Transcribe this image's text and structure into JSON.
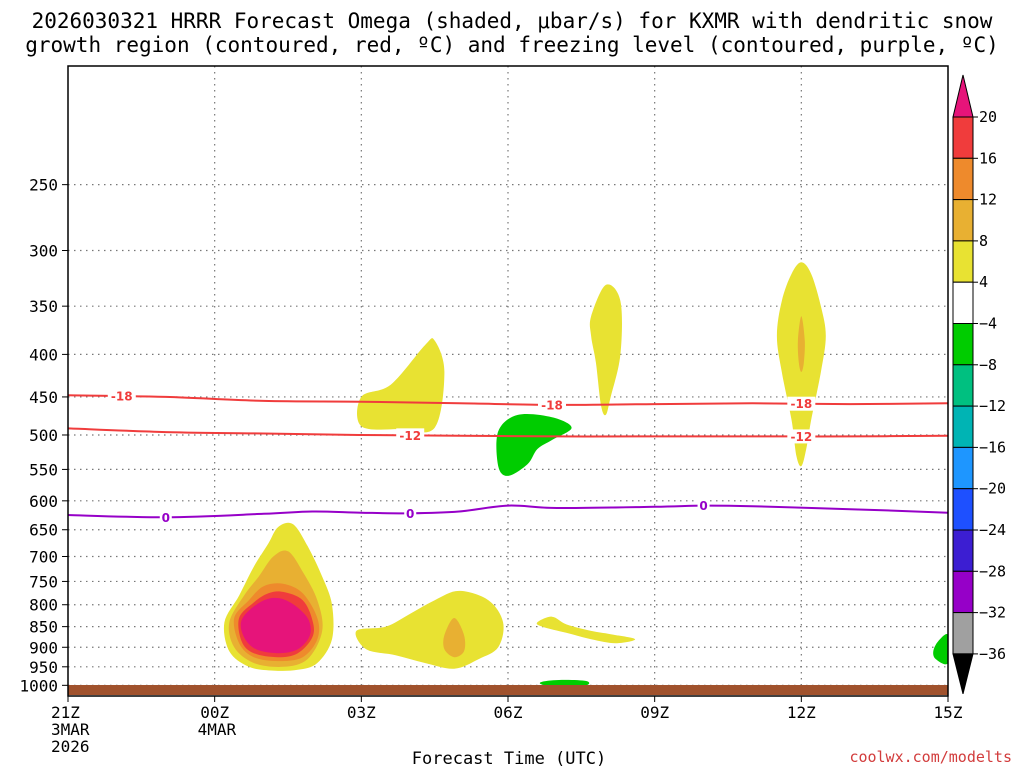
{
  "chart_data": {
    "type": "contour-cross-section",
    "title_line1": "2026030321 HRRR Forecast Omega (shaded, μbar/s) for KXMR with dendritic snow",
    "title_line2": "growth region (contoured, red, ºC) and freezing level (contoured, purple, ºC)",
    "xlabel": "Forecast Time (UTC)",
    "credit": "coolwx.com/modelts",
    "xlim": [
      0,
      18
    ],
    "ylim": [
      1030,
      180
    ],
    "x_ticks": [
      {
        "value": 0,
        "lines": [
          "21Z",
          "3MAR",
          "2026"
        ]
      },
      {
        "value": 3,
        "lines": [
          "00Z",
          "4MAR"
        ]
      },
      {
        "value": 6,
        "lines": [
          "03Z"
        ]
      },
      {
        "value": 9,
        "lines": [
          "06Z"
        ]
      },
      {
        "value": 12,
        "lines": [
          "09Z"
        ]
      },
      {
        "value": 15,
        "lines": [
          "12Z"
        ]
      },
      {
        "value": 18,
        "lines": [
          "15Z"
        ]
      }
    ],
    "y_ticks": [
      250,
      300,
      350,
      400,
      450,
      500,
      550,
      600,
      650,
      700,
      750,
      800,
      850,
      900,
      950,
      1000
    ],
    "colorbar": {
      "labels": [
        "20",
        "16",
        "12",
        "8",
        "4",
        "−4",
        "−8",
        "−12",
        "−16",
        "−20",
        "−24",
        "−28",
        "−32",
        "−36"
      ],
      "colors": [
        "#f03c3c",
        "#ee8a2c",
        "#e8b032",
        "#e8e232",
        "#ffffff",
        "#00cc00",
        "#00c080",
        "#00b4b4",
        "#1e96ff",
        "#1e50ff",
        "#3c1ed2",
        "#9600c8",
        "#a0a0a0"
      ],
      "top_arrow_color": "#e6147a",
      "bottom_arrow_color": "#000000"
    },
    "contours": [
      {
        "name": "dgz-minus-18",
        "label": "-18",
        "color": "#f03c3c",
        "points": [
          [
            0,
            448
          ],
          [
            2,
            450
          ],
          [
            4,
            455
          ],
          [
            6,
            456
          ],
          [
            8,
            458
          ],
          [
            10,
            460
          ],
          [
            12,
            459
          ],
          [
            14,
            458
          ],
          [
            16,
            459
          ],
          [
            18,
            458
          ]
        ],
        "label_x": [
          1.1,
          9.9,
          15.0
        ]
      },
      {
        "name": "dgz-minus-12",
        "label": "-12",
        "color": "#f03c3c",
        "points": [
          [
            0,
            491
          ],
          [
            2,
            496
          ],
          [
            4,
            498
          ],
          [
            6,
            500
          ],
          [
            8,
            501
          ],
          [
            10,
            502
          ],
          [
            12,
            502
          ],
          [
            14,
            502
          ],
          [
            16,
            502
          ],
          [
            18,
            501
          ]
        ],
        "label_x": [
          7.0,
          15.0
        ]
      },
      {
        "name": "freezing-level-0",
        "label": "0",
        "color": "#9600c8",
        "points": [
          [
            0,
            624
          ],
          [
            2,
            628
          ],
          [
            4,
            622
          ],
          [
            5,
            618
          ],
          [
            6,
            620
          ],
          [
            7,
            621
          ],
          [
            8,
            618
          ],
          [
            9,
            608
          ],
          [
            10,
            612
          ],
          [
            12,
            610
          ],
          [
            13,
            608
          ],
          [
            14,
            609
          ],
          [
            16,
            614
          ],
          [
            18,
            620
          ]
        ],
        "label_x": [
          2.0,
          7.0,
          13.0
        ]
      }
    ],
    "shaded_regions": [
      {
        "name": "omega-4-8-cell-00z",
        "value_range": [
          4,
          8
        ],
        "color": "#e8e232",
        "points": [
          [
            3.2,
            840
          ],
          [
            3.5,
            780
          ],
          [
            3.8,
            720
          ],
          [
            4.1,
            675
          ],
          [
            4.3,
            645
          ],
          [
            4.6,
            640
          ],
          [
            4.9,
            680
          ],
          [
            5.2,
            740
          ],
          [
            5.4,
            800
          ],
          [
            5.4,
            880
          ],
          [
            5.1,
            940
          ],
          [
            4.7,
            958
          ],
          [
            4.2,
            960
          ],
          [
            3.7,
            950
          ],
          [
            3.3,
            910
          ]
        ]
      },
      {
        "name": "omega-8-12-cell-00z",
        "value_range": [
          8,
          12
        ],
        "color": "#e8b032",
        "points": [
          [
            3.3,
            840
          ],
          [
            3.6,
            780
          ],
          [
            3.9,
            740
          ],
          [
            4.2,
            700
          ],
          [
            4.5,
            690
          ],
          [
            4.8,
            730
          ],
          [
            5.1,
            790
          ],
          [
            5.2,
            860
          ],
          [
            4.9,
            930
          ],
          [
            4.4,
            950
          ],
          [
            3.8,
            940
          ],
          [
            3.4,
            900
          ]
        ]
      },
      {
        "name": "omega-12-16-cell-00z",
        "value_range": [
          12,
          16
        ],
        "color": "#ee8a2c",
        "points": [
          [
            3.4,
            830
          ],
          [
            3.7,
            790
          ],
          [
            4.0,
            760
          ],
          [
            4.4,
            755
          ],
          [
            4.8,
            775
          ],
          [
            5.1,
            830
          ],
          [
            5.1,
            880
          ],
          [
            4.8,
            925
          ],
          [
            4.3,
            935
          ],
          [
            3.8,
            925
          ],
          [
            3.5,
            890
          ]
        ]
      },
      {
        "name": "omega-16-20-cell-00z",
        "value_range": [
          16,
          20
        ],
        "color": "#f03c3c",
        "points": [
          [
            3.5,
            830
          ],
          [
            3.8,
            795
          ],
          [
            4.1,
            775
          ],
          [
            4.4,
            772
          ],
          [
            4.8,
            790
          ],
          [
            5.0,
            835
          ],
          [
            5.0,
            875
          ],
          [
            4.7,
            915
          ],
          [
            4.3,
            925
          ],
          [
            3.8,
            915
          ],
          [
            3.55,
            885
          ]
        ]
      },
      {
        "name": "omega-over-20-cell-00z",
        "value_range": [
          20,
          99
        ],
        "color": "#e6147a",
        "points": [
          [
            3.55,
            835
          ],
          [
            3.85,
            800
          ],
          [
            4.2,
            785
          ],
          [
            4.55,
            795
          ],
          [
            4.9,
            830
          ],
          [
            4.95,
            870
          ],
          [
            4.7,
            905
          ],
          [
            4.3,
            915
          ],
          [
            3.85,
            905
          ],
          [
            3.6,
            875
          ]
        ]
      },
      {
        "name": "omega-4-8-cell-03z-low",
        "value_range": [
          4,
          8
        ],
        "color": "#e8e232",
        "points": [
          [
            5.9,
            860
          ],
          [
            6.5,
            850
          ],
          [
            7.0,
            820
          ],
          [
            7.5,
            790
          ],
          [
            8.0,
            770
          ],
          [
            8.6,
            790
          ],
          [
            8.9,
            840
          ],
          [
            8.8,
            900
          ],
          [
            8.4,
            930
          ],
          [
            7.9,
            955
          ],
          [
            7.3,
            940
          ],
          [
            6.7,
            920
          ],
          [
            6.1,
            905
          ]
        ]
      },
      {
        "name": "omega-8-12-cell-03z-low",
        "value_range": [
          8,
          12
        ],
        "color": "#e8b032",
        "points": [
          [
            7.7,
            870
          ],
          [
            7.9,
            830
          ],
          [
            8.1,
            870
          ],
          [
            8.1,
            910
          ],
          [
            7.9,
            925
          ],
          [
            7.7,
            905
          ]
        ]
      },
      {
        "name": "omega-4-8-cell-03z-upper",
        "value_range": [
          4,
          8
        ],
        "color": "#e8e232",
        "points": [
          [
            6.0,
            450
          ],
          [
            6.6,
            435
          ],
          [
            7.3,
            390
          ],
          [
            7.5,
            385
          ],
          [
            7.7,
            420
          ],
          [
            7.5,
            490
          ],
          [
            6.8,
            492
          ],
          [
            6.0,
            488
          ]
        ]
      },
      {
        "name": "omega-neg-cell-05z",
        "value_range": [
          -8,
          -4
        ],
        "color": "#00cc00",
        "points": [
          [
            8.8,
            495
          ],
          [
            9.2,
            473
          ],
          [
            9.9,
            476
          ],
          [
            10.3,
            490
          ],
          [
            9.9,
            507
          ],
          [
            9.6,
            520
          ],
          [
            9.4,
            542
          ],
          [
            9.0,
            560
          ],
          [
            8.8,
            545
          ]
        ]
      },
      {
        "name": "omega-4-8-cell-06z-low",
        "value_range": [
          4,
          8
        ],
        "color": "#e8e232",
        "points": [
          [
            9.6,
            840
          ],
          [
            9.9,
            827
          ],
          [
            10.2,
            845
          ],
          [
            10.7,
            860
          ],
          [
            11.1,
            868
          ],
          [
            11.6,
            880
          ],
          [
            11.2,
            890
          ],
          [
            10.7,
            880
          ],
          [
            10.2,
            865
          ],
          [
            9.7,
            850
          ]
        ]
      },
      {
        "name": "omega-neg-cell-06z-sfc",
        "value_range": [
          -8,
          -4
        ],
        "color": "#00cc00",
        "points": [
          [
            9.7,
            990
          ],
          [
            10.1,
            985
          ],
          [
            10.6,
            988
          ],
          [
            10.6,
            1000
          ],
          [
            10.1,
            1005
          ],
          [
            9.7,
            998
          ]
        ]
      },
      {
        "name": "omega-4-8-cell-07z",
        "value_range": [
          4,
          8
        ],
        "color": "#e8e232",
        "points": [
          [
            10.7,
            360
          ],
          [
            11.0,
            330
          ],
          [
            11.3,
            345
          ],
          [
            11.3,
            400
          ],
          [
            11.1,
            450
          ],
          [
            11.0,
            473
          ],
          [
            10.9,
            460
          ],
          [
            10.8,
            410
          ],
          [
            10.7,
            380
          ]
        ]
      },
      {
        "name": "omega-4-8-cell-12z",
        "value_range": [
          4,
          8
        ],
        "color": "#e8e232",
        "points": [
          [
            15.0,
            310
          ],
          [
            15.2,
            320
          ],
          [
            15.4,
            350
          ],
          [
            15.5,
            380
          ],
          [
            15.4,
            420
          ],
          [
            15.2,
            480
          ],
          [
            15.1,
            520
          ],
          [
            15.0,
            545
          ],
          [
            14.9,
            530
          ],
          [
            14.8,
            480
          ],
          [
            14.6,
            420
          ],
          [
            14.5,
            380
          ],
          [
            14.6,
            345
          ],
          [
            14.8,
            320
          ]
        ]
      },
      {
        "name": "omega-8-12-cell-12z",
        "value_range": [
          8,
          12
        ],
        "color": "#e8b032",
        "points": [
          [
            15.0,
            360
          ],
          [
            15.07,
            385
          ],
          [
            15.05,
            410
          ],
          [
            15.0,
            420
          ],
          [
            14.95,
            410
          ],
          [
            14.93,
            385
          ]
        ]
      },
      {
        "name": "omega-neg-cell-15z",
        "value_range": [
          -8,
          -4
        ],
        "color": "#00cc00",
        "points": [
          [
            18.0,
            870
          ],
          [
            18.0,
            940
          ],
          [
            17.75,
            930
          ],
          [
            17.7,
            910
          ],
          [
            17.8,
            885
          ]
        ]
      }
    ]
  }
}
